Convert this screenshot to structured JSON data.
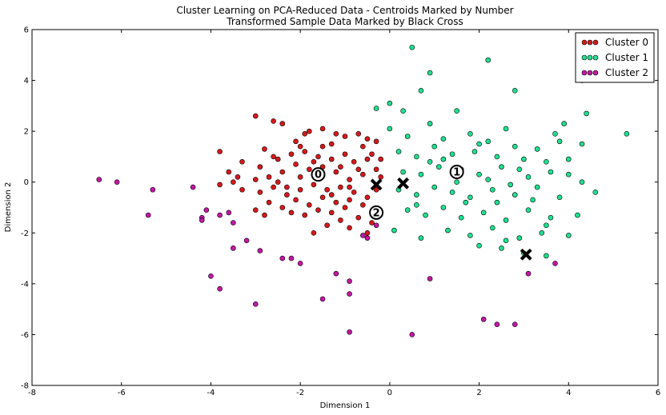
{
  "chart_data": {
    "type": "scatter",
    "title": "Cluster Learning on PCA-Reduced Data - Centroids Marked by Number",
    "subtitle": "Transformed Sample Data Marked by Black Cross",
    "xlabel": "Dimension 1",
    "ylabel": "Dimension 2",
    "xlim": [
      -8,
      6
    ],
    "ylim": [
      -8,
      6
    ],
    "xticks": [
      "-8",
      "-6",
      "-4",
      "-2",
      "0",
      "2",
      "4",
      "6"
    ],
    "yticks": [
      "-8",
      "-6",
      "-4",
      "-2",
      "0",
      "2",
      "4",
      "6"
    ],
    "legend_position": "top-right",
    "grid": false,
    "series": [
      {
        "name": "Cluster 0",
        "color": "#d7191c",
        "points": [
          [
            -3.0,
            2.6
          ],
          [
            -2.6,
            2.4
          ],
          [
            -2.4,
            2.3
          ],
          [
            -1.9,
            1.9
          ],
          [
            -1.8,
            2.0
          ],
          [
            -1.5,
            2.1
          ],
          [
            -1.2,
            1.9
          ],
          [
            -1.0,
            1.8
          ],
          [
            -0.7,
            1.9
          ],
          [
            -0.5,
            1.7
          ],
          [
            -0.3,
            1.6
          ],
          [
            -0.6,
            1.4
          ],
          [
            -1.3,
            1.5
          ],
          [
            -2.1,
            1.6
          ],
          [
            -2.8,
            1.3
          ],
          [
            -3.8,
            1.2
          ],
          [
            -3.3,
            0.8
          ],
          [
            -2.9,
            0.6
          ],
          [
            -2.5,
            0.9
          ],
          [
            -2.2,
            1.1
          ],
          [
            -1.9,
            1.2
          ],
          [
            -1.6,
            1.0
          ],
          [
            -1.3,
            0.9
          ],
          [
            -1.0,
            1.1
          ],
          [
            -0.8,
            0.8
          ],
          [
            -0.5,
            0.9
          ],
          [
            -0.3,
            0.5
          ],
          [
            -0.2,
            0.2
          ],
          [
            -0.6,
            0.3
          ],
          [
            -0.9,
            0.1
          ],
          [
            -1.2,
            0.4
          ],
          [
            -1.5,
            0.6
          ],
          [
            -1.8,
            0.5
          ],
          [
            -2.1,
            0.7
          ],
          [
            -2.4,
            0.4
          ],
          [
            -2.7,
            0.2
          ],
          [
            -3.0,
            0.1
          ],
          [
            -3.5,
            0.0
          ],
          [
            -3.8,
            -0.1
          ],
          [
            -3.3,
            -0.3
          ],
          [
            -2.9,
            -0.4
          ],
          [
            -2.6,
            -0.2
          ],
          [
            -2.3,
            -0.5
          ],
          [
            -2.0,
            -0.3
          ],
          [
            -1.7,
            -0.1
          ],
          [
            -1.4,
            -0.3
          ],
          [
            -1.1,
            -0.2
          ],
          [
            -0.8,
            -0.4
          ],
          [
            -0.5,
            -0.6
          ],
          [
            -0.3,
            -0.3
          ],
          [
            -0.6,
            -0.9
          ],
          [
            -0.9,
            -0.7
          ],
          [
            -1.2,
            -0.8
          ],
          [
            -1.5,
            -0.6
          ],
          [
            -1.8,
            -0.9
          ],
          [
            -2.1,
            -0.7
          ],
          [
            -2.4,
            -1.0
          ],
          [
            -2.7,
            -0.8
          ],
          [
            -3.0,
            -1.1
          ],
          [
            -2.8,
            -1.3
          ],
          [
            -2.2,
            -1.2
          ],
          [
            -1.9,
            -1.3
          ],
          [
            -1.6,
            -1.1
          ],
          [
            -1.3,
            -1.2
          ],
          [
            -1.0,
            -1.0
          ],
          [
            -0.7,
            -1.4
          ],
          [
            -0.4,
            -1.6
          ],
          [
            -1.1,
            -1.5
          ],
          [
            -1.4,
            -1.7
          ],
          [
            -1.7,
            -2.0
          ],
          [
            -0.9,
            -1.8
          ],
          [
            -0.5,
            -2.0
          ],
          [
            -2.5,
            0.0
          ],
          [
            -2.0,
            0.2
          ],
          [
            -1.6,
            0.3
          ],
          [
            -1.3,
            -0.5
          ],
          [
            -0.9,
            -0.2
          ],
          [
            -2.3,
            -0.2
          ],
          [
            -1.7,
            0.8
          ],
          [
            -2.0,
            1.4
          ],
          [
            -3.6,
            0.4
          ],
          [
            -3.4,
            0.2
          ],
          [
            -1.1,
            0.6
          ],
          [
            -0.7,
            0.5
          ],
          [
            -0.4,
            1.1
          ],
          [
            -0.2,
            0.9
          ],
          [
            -1.5,
            1.4
          ],
          [
            -2.6,
            1.0
          ]
        ]
      },
      {
        "name": "Cluster 1",
        "color": "#1de28f",
        "points": [
          [
            0.5,
            5.3
          ],
          [
            2.2,
            4.8
          ],
          [
            4.3,
            4.0
          ],
          [
            0.9,
            4.3
          ],
          [
            2.8,
            3.6
          ],
          [
            0.7,
            3.6
          ],
          [
            -0.3,
            2.9
          ],
          [
            0.0,
            3.1
          ],
          [
            0.3,
            2.8
          ],
          [
            1.5,
            2.8
          ],
          [
            2.6,
            2.1
          ],
          [
            3.9,
            2.3
          ],
          [
            4.4,
            2.7
          ],
          [
            5.3,
            1.9
          ],
          [
            4.3,
            1.5
          ],
          [
            3.7,
            1.9
          ],
          [
            0.0,
            2.1
          ],
          [
            0.4,
            1.8
          ],
          [
            0.9,
            2.3
          ],
          [
            1.2,
            1.7
          ],
          [
            1.8,
            1.9
          ],
          [
            2.2,
            1.6
          ],
          [
            2.8,
            1.4
          ],
          [
            3.3,
            1.3
          ],
          [
            0.2,
            1.2
          ],
          [
            0.6,
            1.0
          ],
          [
            1.0,
            1.4
          ],
          [
            1.4,
            1.1
          ],
          [
            1.9,
            1.2
          ],
          [
            2.4,
            1.0
          ],
          [
            3.0,
            0.9
          ],
          [
            3.5,
            0.8
          ],
          [
            4.0,
            0.9
          ],
          [
            0.3,
            0.4
          ],
          [
            0.7,
            0.3
          ],
          [
            1.1,
            0.6
          ],
          [
            1.6,
            0.5
          ],
          [
            2.0,
            0.3
          ],
          [
            2.5,
            0.6
          ],
          [
            3.1,
            0.2
          ],
          [
            3.6,
            0.4
          ],
          [
            4.0,
            0.3
          ],
          [
            0.2,
            -0.3
          ],
          [
            0.6,
            -0.5
          ],
          [
            1.0,
            -0.2
          ],
          [
            1.4,
            -0.4
          ],
          [
            1.8,
            -0.6
          ],
          [
            2.3,
            -0.3
          ],
          [
            2.8,
            -0.5
          ],
          [
            3.3,
            -0.2
          ],
          [
            3.8,
            -0.6
          ],
          [
            4.6,
            -0.4
          ],
          [
            0.4,
            -1.1
          ],
          [
            0.8,
            -1.3
          ],
          [
            1.2,
            -1.0
          ],
          [
            1.6,
            -1.4
          ],
          [
            2.1,
            -1.2
          ],
          [
            2.6,
            -1.5
          ],
          [
            3.1,
            -1.1
          ],
          [
            3.6,
            -1.4
          ],
          [
            4.2,
            -1.3
          ],
          [
            0.1,
            -1.9
          ],
          [
            0.7,
            -2.2
          ],
          [
            1.3,
            -1.9
          ],
          [
            1.8,
            -2.1
          ],
          [
            2.3,
            -1.8
          ],
          [
            2.9,
            -2.2
          ],
          [
            3.4,
            -2.0
          ],
          [
            4.0,
            -2.1
          ],
          [
            2.5,
            -2.6
          ],
          [
            3.0,
            -2.8
          ],
          [
            3.5,
            -2.9
          ],
          [
            2.0,
            -2.5
          ],
          [
            0.6,
            -0.9
          ],
          [
            1.5,
            0.0
          ],
          [
            2.2,
            0.1
          ],
          [
            2.7,
            -0.1
          ],
          [
            3.2,
            -0.7
          ],
          [
            1.2,
            0.9
          ],
          [
            2.0,
            1.5
          ],
          [
            0.9,
            0.8
          ],
          [
            1.7,
            -0.8
          ],
          [
            2.4,
            -0.8
          ],
          [
            2.9,
            0.5
          ],
          [
            3.8,
            1.6
          ],
          [
            4.3,
            0.0
          ],
          [
            3.5,
            -1.7
          ],
          [
            2.6,
            -2.3
          ]
        ]
      },
      {
        "name": "Cluster 2",
        "color": "#c517a4",
        "points": [
          [
            -6.5,
            0.1
          ],
          [
            -6.1,
            0.0
          ],
          [
            -5.3,
            -0.3
          ],
          [
            -5.4,
            -1.3
          ],
          [
            -4.4,
            -0.2
          ],
          [
            -4.1,
            -1.1
          ],
          [
            -4.2,
            -1.4
          ],
          [
            -4.2,
            -1.5
          ],
          [
            -3.8,
            -1.3
          ],
          [
            -3.6,
            -1.2
          ],
          [
            -3.5,
            -1.6
          ],
          [
            -3.5,
            -2.6
          ],
          [
            -3.2,
            -2.3
          ],
          [
            -2.9,
            -2.7
          ],
          [
            -2.4,
            -3.0
          ],
          [
            -2.2,
            -3.0
          ],
          [
            -4.0,
            -3.7
          ],
          [
            -3.8,
            -4.2
          ],
          [
            -3.0,
            -4.8
          ],
          [
            -2.0,
            -3.2
          ],
          [
            -1.5,
            -4.6
          ],
          [
            -1.2,
            -3.6
          ],
          [
            -0.9,
            -3.9
          ],
          [
            -0.9,
            -4.4
          ],
          [
            -0.9,
            -5.9
          ],
          [
            -0.6,
            -2.1
          ],
          [
            -0.5,
            -2.2
          ],
          [
            -0.3,
            -1.7
          ],
          [
            0.5,
            -6.0
          ],
          [
            0.9,
            -3.8
          ],
          [
            2.1,
            -5.4
          ],
          [
            2.4,
            -5.6
          ],
          [
            2.8,
            -5.6
          ],
          [
            3.1,
            -3.6
          ],
          [
            3.7,
            -3.2
          ]
        ]
      }
    ],
    "centroids": [
      {
        "label": "0",
        "x": -1.6,
        "y": 0.3
      },
      {
        "label": "1",
        "x": 1.5,
        "y": 0.4
      },
      {
        "label": "2",
        "x": -0.3,
        "y": -1.2
      }
    ],
    "samples": [
      {
        "x": -0.3,
        "y": -0.1
      },
      {
        "x": 0.3,
        "y": -0.05
      },
      {
        "x": 3.05,
        "y": -2.85
      }
    ]
  }
}
